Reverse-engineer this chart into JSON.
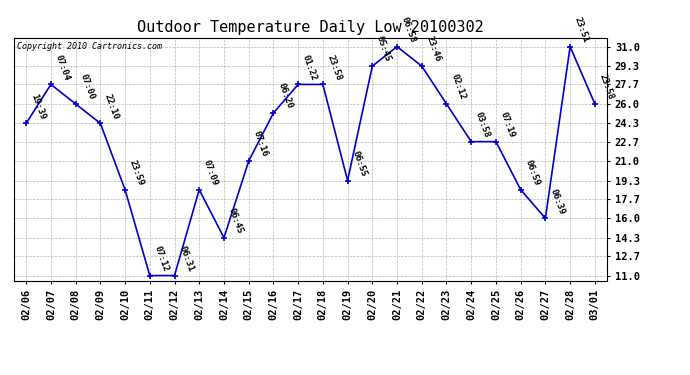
{
  "title": "Outdoor Temperature Daily Low 20100302",
  "copyright": "Copyright 2010 Cartronics.com",
  "background_color": "#ffffff",
  "plot_bg_color": "#ffffff",
  "line_color": "#0000cc",
  "marker_color": "#0000cc",
  "grid_color": "#888888",
  "yticks": [
    11.0,
    12.7,
    14.3,
    16.0,
    17.7,
    19.3,
    21.0,
    22.7,
    24.3,
    26.0,
    27.7,
    29.3,
    31.0
  ],
  "ylim": [
    10.5,
    31.8
  ],
  "dates": [
    "02/06",
    "02/07",
    "02/08",
    "02/09",
    "02/10",
    "02/11",
    "02/12",
    "02/13",
    "02/14",
    "02/15",
    "02/16",
    "02/17",
    "02/18",
    "02/19",
    "02/20",
    "02/21",
    "02/22",
    "02/23",
    "02/24",
    "02/25",
    "02/26",
    "02/27",
    "02/28",
    "03/01"
  ],
  "values": [
    24.3,
    27.7,
    26.0,
    24.3,
    18.5,
    11.0,
    11.0,
    18.5,
    14.3,
    21.0,
    25.2,
    27.7,
    27.7,
    19.3,
    29.3,
    31.0,
    29.3,
    26.0,
    22.7,
    22.7,
    18.5,
    16.0,
    31.0,
    26.0
  ],
  "timestamps": [
    "19:39",
    "07:04",
    "07:00",
    "22:10",
    "23:59",
    "07:12",
    "06:31",
    "07:09",
    "06:45",
    "07:16",
    "06:20",
    "01:22",
    "23:58",
    "06:55",
    "05:45",
    "06:58",
    "23:46",
    "02:12",
    "03:58",
    "07:19",
    "06:59",
    "06:39",
    "23:51",
    "23:58"
  ],
  "title_fontsize": 11,
  "tick_fontsize": 7.5,
  "annot_fontsize": 6.5
}
